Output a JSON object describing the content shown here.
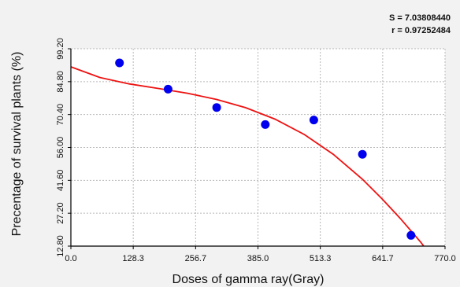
{
  "chart_data": {
    "type": "scatter",
    "title": "",
    "xlabel": "Doses of gamma ray(Gray)",
    "ylabel": "Precentage of survival plants (%)",
    "xlim": [
      0,
      770
    ],
    "ylim": [
      12.8,
      99.2
    ],
    "x_ticks": [
      "0.0",
      "128.3",
      "256.7",
      "385.0",
      "513.3",
      "641.7",
      "770.0"
    ],
    "y_ticks": [
      "12.80",
      "27.20",
      "41.60",
      "56.00",
      "70.40",
      "84.80",
      "99.20"
    ],
    "grid": true,
    "stats": {
      "s": "S = 7.03808440",
      "r": "r = 0.97252484"
    },
    "colors": {
      "points": "#0000ee",
      "fit": "#ee1111",
      "grid": "#b8b8b8",
      "plot_bg": "#ffffff"
    },
    "series": [
      {
        "type": "scatter",
        "x": [
          100,
          200,
          300,
          400,
          500,
          600,
          700
        ],
        "y": [
          93.0,
          81.5,
          73.5,
          66.0,
          68.0,
          53.0,
          17.5
        ]
      },
      {
        "type": "line",
        "x": [
          0,
          60,
          120,
          180,
          240,
          300,
          360,
          420,
          480,
          540,
          600,
          640,
          680,
          720,
          765
        ],
        "y": [
          91.3,
          86.6,
          83.8,
          81.8,
          79.7,
          77.0,
          73.4,
          68.4,
          61.7,
          53.0,
          42.1,
          33.6,
          24.4,
          14.5,
          2.0
        ]
      }
    ]
  }
}
